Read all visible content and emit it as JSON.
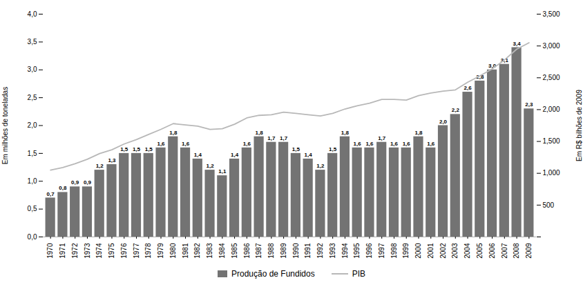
{
  "chart_data": {
    "type": "bar",
    "categories": [
      "1970",
      "1971",
      "1972",
      "1973",
      "1974",
      "1975",
      "1976",
      "1977",
      "1978",
      "1979",
      "1980",
      "1981",
      "1982",
      "1983",
      "1984",
      "1985",
      "1986",
      "1987",
      "1988",
      "1989",
      "1990",
      "1991",
      "1992",
      "1993",
      "1994",
      "1995",
      "1996",
      "1997",
      "1998",
      "1999",
      "2000",
      "2001",
      "2002",
      "2003",
      "2004",
      "2005",
      "2006",
      "2007",
      "2008",
      "2009"
    ],
    "series": [
      {
        "name": "Produção de Fundidos",
        "type": "bar",
        "color": "#737373",
        "values": [
          0.7,
          0.8,
          0.9,
          0.9,
          1.2,
          1.3,
          1.5,
          1.5,
          1.5,
          1.6,
          1.8,
          1.6,
          1.4,
          1.2,
          1.1,
          1.4,
          1.6,
          1.8,
          1.7,
          1.7,
          1.5,
          1.4,
          1.2,
          1.5,
          1.8,
          1.6,
          1.6,
          1.7,
          1.6,
          1.6,
          1.8,
          1.6,
          2.0,
          2.2,
          2.6,
          2.8,
          3.0,
          3.1,
          3.4,
          2.3
        ],
        "value_labels": [
          "0,7",
          "0,8",
          "0,9",
          "0,9",
          "1,2",
          "1,3",
          "1,5",
          "1,5",
          "1,5",
          "1,6",
          "1,8",
          "1,6",
          "1,4",
          "1,2",
          "1,1",
          "1,4",
          "1,6",
          "1,8",
          "1,7",
          "1,7",
          "1,5",
          "1,4",
          "1,2",
          "1,5",
          "1,8",
          "1,6",
          "1,6",
          "1,7",
          "1,6",
          "1,6",
          "1,8",
          "1,6",
          "2,0",
          "2,2",
          "2,6",
          "2,8",
          "3,0",
          "3,1",
          "3,4",
          "2,3"
        ]
      },
      {
        "name": "PIB",
        "type": "line",
        "color": "#b8b8b8",
        "axis": "y2",
        "values": [
          1050,
          1090,
          1150,
          1220,
          1310,
          1370,
          1460,
          1530,
          1610,
          1690,
          1780,
          1760,
          1740,
          1690,
          1700,
          1770,
          1870,
          1910,
          1920,
          1960,
          1940,
          1920,
          1900,
          1940,
          2010,
          2060,
          2100,
          2160,
          2160,
          2150,
          2220,
          2260,
          2290,
          2310,
          2430,
          2530,
          2640,
          2780,
          2950,
          3050
        ]
      }
    ],
    "ylabel": "Em milhões de toneladas",
    "y2label": "Em R$ bilhões de 2009",
    "ylim": [
      0,
      4.0
    ],
    "yticks": [
      {
        "value": 0.0,
        "label": "0,0"
      },
      {
        "value": 0.5,
        "label": "0,5"
      },
      {
        "value": 1.0,
        "label": "1,0"
      },
      {
        "value": 1.5,
        "label": "1,5"
      },
      {
        "value": 2.0,
        "label": "2,0"
      },
      {
        "value": 2.5,
        "label": "2,5"
      },
      {
        "value": 3.0,
        "label": "3,0"
      },
      {
        "value": 3.5,
        "label": "3,5"
      },
      {
        "value": 4.0,
        "label": "4,0"
      }
    ],
    "y2lim": [
      0,
      3500
    ],
    "y2ticks": [
      0,
      500,
      {
        "value": 1000,
        "label": "1,000"
      },
      {
        "value": 1500,
        "label": "1,500"
      },
      {
        "value": 2000,
        "label": "2,000"
      },
      {
        "value": 2500,
        "label": "2,500"
      },
      {
        "value": 3000,
        "label": "3,000"
      },
      {
        "value": 3500,
        "label": "3,500"
      }
    ],
    "data_labels": true,
    "grid": false,
    "legend": "bottom"
  }
}
